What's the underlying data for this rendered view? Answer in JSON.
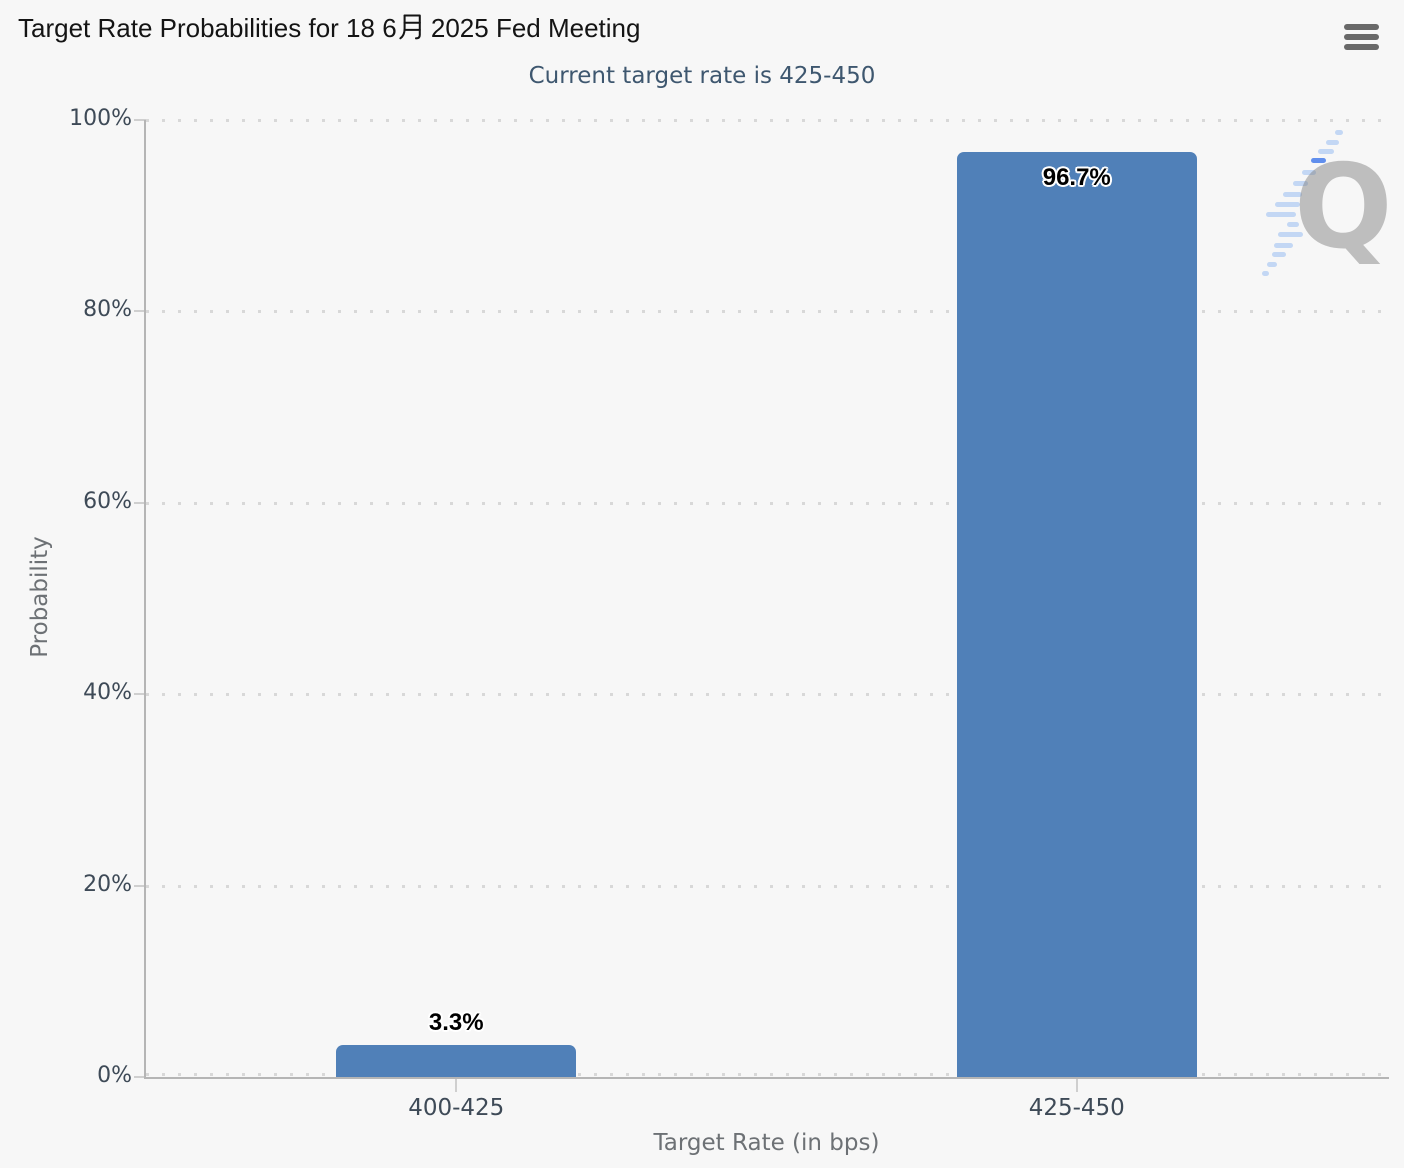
{
  "header": {
    "title_full": "Target Rate Probabilities for 18 6月 2025 Fed Meeting",
    "title_pre": "Target Rate Probabilities for 18 6",
    "title_month": "月",
    "title_post": " 2025 Fed Meeting",
    "subtitle": "Current target rate is 425-450"
  },
  "menu": {
    "icon": "hamburger-menu-icon"
  },
  "watermark": {
    "letter": "Q"
  },
  "chart_data": {
    "type": "bar",
    "title": "Target Rate Probabilities for 18 6月 2025 Fed Meeting",
    "subtitle": "Current target rate is 425-450",
    "categories": [
      "400-425",
      "425-450"
    ],
    "values": [
      3.3,
      96.7
    ],
    "value_labels": [
      "3.3%",
      "96.7%"
    ],
    "xlabel": "Target Rate (in bps)",
    "ylabel": "Probability",
    "ylim": [
      0,
      100
    ],
    "yticks": [
      0,
      20,
      40,
      60,
      80,
      100
    ],
    "ytick_labels": [
      "0%",
      "20%",
      "40%",
      "60%",
      "80%",
      "100%"
    ],
    "grid": "dotted-horizontal",
    "legend": "none",
    "bar_color": "#5080b8",
    "label_placement": [
      "above",
      "inside"
    ]
  },
  "colors": {
    "background": "#f7f7f7",
    "title": "#141414",
    "subtitle": "#3e576f",
    "axis_label": "#3e4a57",
    "axis_title": "#6d7175",
    "axis_line": "#b5b5b5",
    "tick": "#cfcfcf",
    "grid_dot": "#d8d8d8",
    "bar": "#5080b8",
    "menu_icon": "#696969",
    "data_label_text": "#000000",
    "data_label_halo": "#ffffff"
  }
}
